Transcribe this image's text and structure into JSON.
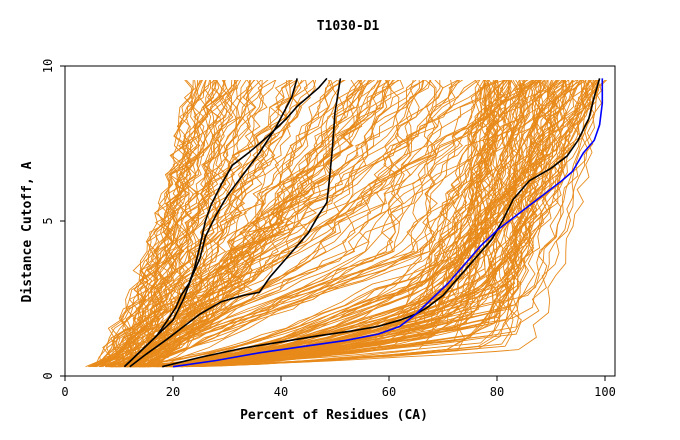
{
  "chart_data": {
    "type": "line",
    "title": "T1030-D1",
    "xlabel": "Percent of Residues (CA)",
    "ylabel": "Distance Cutoff, A",
    "xlim": [
      0,
      100
    ],
    "ylim": [
      0,
      10
    ],
    "x_ticks": [
      "0",
      "20",
      "40",
      "60",
      "80",
      "100"
    ],
    "y_ticks": [
      "0",
      "5",
      "10"
    ],
    "grid": false,
    "legend": "none",
    "colors": {
      "background_models": "#e88a1a",
      "highlighted_models": "#000000",
      "best_model": "#0000ff"
    },
    "series": [
      {
        "color": "#000000",
        "x": [
          11,
          14,
          17,
          20,
          22,
          23.5,
          25,
          26,
          28,
          30,
          33,
          36,
          39,
          42,
          43
        ],
        "y": [
          0.3,
          0.8,
          1.3,
          1.8,
          2.5,
          3.2,
          3.8,
          4.5,
          5.2,
          5.8,
          6.5,
          7.2,
          8,
          9,
          9.6
        ]
      },
      {
        "color": "#000000",
        "x": [
          11,
          14,
          17,
          19,
          20.5,
          21.5,
          23,
          24,
          25,
          26,
          27,
          29,
          31,
          34,
          38,
          41,
          43,
          45,
          47,
          48.5
        ],
        "y": [
          0.3,
          0.8,
          1.3,
          1.8,
          2.2,
          2.6,
          3.0,
          3.5,
          4.2,
          5.0,
          5.5,
          6.2,
          6.8,
          7.2,
          7.8,
          8.3,
          8.7,
          9.0,
          9.3,
          9.6
        ]
      },
      {
        "color": "#000000",
        "x": [
          12,
          15,
          19,
          22,
          25,
          29,
          33,
          36,
          38,
          40,
          42,
          45,
          47,
          48.5,
          49,
          49.5,
          50,
          51
        ],
        "y": [
          0.3,
          0.7,
          1.2,
          1.6,
          2.0,
          2.4,
          2.6,
          2.7,
          3.2,
          3.6,
          4.0,
          4.6,
          5.2,
          5.6,
          6.4,
          7.3,
          8.5,
          9.6
        ]
      },
      {
        "color": "#000000",
        "x": [
          18,
          25,
          33,
          40,
          47,
          53,
          58,
          62,
          65,
          67,
          70,
          73,
          76,
          79,
          81,
          83,
          86,
          90,
          93,
          95,
          97,
          98,
          98.5,
          99
        ],
        "y": [
          0.3,
          0.6,
          0.9,
          1.1,
          1.3,
          1.45,
          1.6,
          1.8,
          2.0,
          2.2,
          2.6,
          3.2,
          3.8,
          4.4,
          5.0,
          5.7,
          6.3,
          6.7,
          7.1,
          7.6,
          8.3,
          9.0,
          9.3,
          9.6
        ]
      },
      {
        "color": "#0000ff",
        "x": [
          20,
          28,
          36,
          44,
          52,
          58,
          62,
          65,
          68,
          71,
          74,
          77,
          80,
          83,
          86,
          89,
          92,
          94,
          96,
          98,
          99,
          99.5,
          99.5
        ],
        "y": [
          0.3,
          0.5,
          0.75,
          0.95,
          1.15,
          1.35,
          1.6,
          2.0,
          2.5,
          3.0,
          3.6,
          4.2,
          4.7,
          5.1,
          5.5,
          5.9,
          6.3,
          6.6,
          7.2,
          7.6,
          8.1,
          8.8,
          9.6
        ]
      }
    ]
  }
}
